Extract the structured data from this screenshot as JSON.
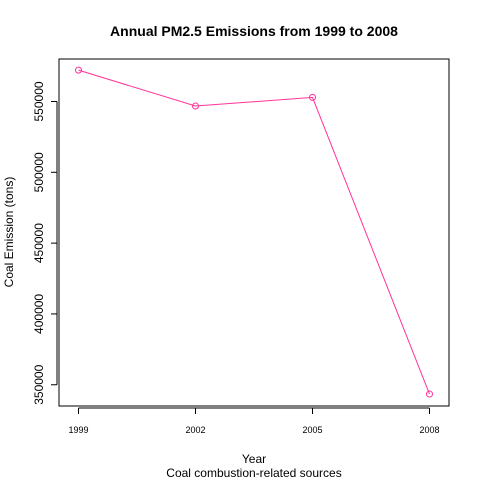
{
  "chart_data": {
    "type": "line",
    "title": "Annual PM2.5 Emissions from 1999 to 2008",
    "xlabel": "Year",
    "subtitle": "Coal combustion-related sources",
    "ylabel": "Coal Emission (tons)",
    "x": [
      1999,
      2002,
      2005,
      2008
    ],
    "x_tick_labels": [
      "1999",
      "2002",
      "2005",
      "2008"
    ],
    "y_tick_values": [
      350000,
      400000,
      450000,
      500000,
      550000
    ],
    "y_tick_labels": [
      "350000",
      "400000",
      "450000",
      "500000",
      "550000"
    ],
    "series": [
      {
        "color": "#ff3399",
        "marker": "open-circle",
        "values": [
          572126,
          546789,
          552881,
          343432
        ]
      }
    ],
    "xlim": [
      1998.5,
      2008.5
    ],
    "ylim": [
      335000,
      580000
    ],
    "grid": false,
    "legend": "none"
  }
}
